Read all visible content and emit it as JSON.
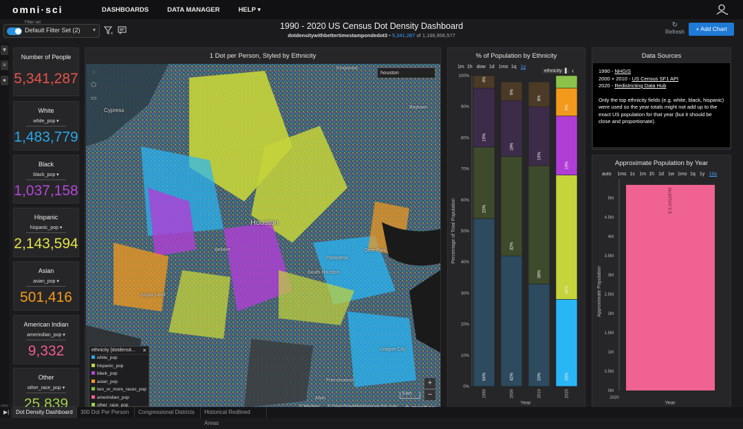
{
  "nav": {
    "logo": "omni·sci",
    "items": [
      "DASHBOARDS",
      "DATA MANAGER",
      "HELP"
    ]
  },
  "filter": {
    "label": "Filter set",
    "value": "Default Filter Set (2)"
  },
  "dashboard": {
    "title": "1990 - 2020 US Census Dot Density Dashboard",
    "table": "dotdensitywithbettertimestampondedot3",
    "count": "5,341,287",
    "total": "of 1,166,956,577",
    "refresh_label": "Refresh",
    "add_chart_label": "Add Chart"
  },
  "cards": [
    {
      "title": "Number of People",
      "field": "",
      "value": "5,341,287",
      "color": "#e8524b"
    },
    {
      "title": "White",
      "field": "white_pop",
      "value": "1,483,779",
      "color": "#2aa7e8"
    },
    {
      "title": "Black",
      "field": "black_pop",
      "value": "1,037,158",
      "color": "#b348d8"
    },
    {
      "title": "Hispanic",
      "field": "hispanic_pop",
      "value": "2,143,594",
      "color": "#e3e34a"
    },
    {
      "title": "Asian",
      "field": "asian_pop",
      "value": "501,416",
      "color": "#f39a1c"
    },
    {
      "title": "American Indian",
      "field": "amerindian_pop",
      "value": "9,332",
      "color": "#ef5b8f"
    },
    {
      "title": "Other",
      "field": "other_race_pop",
      "value": "25,839",
      "color": "#9fd14a"
    }
  ],
  "map": {
    "title": "1 Dot per Person, Styled by Ethnicity",
    "search_value": "houston",
    "labels": [
      "Cypress",
      "Kingwood",
      "Houston",
      "Bellaire",
      "Pasadena",
      "South Houston",
      "Deer Park",
      "Sugar Land",
      "Friendswood",
      "League City",
      "Alvin",
      "Baytown"
    ],
    "scale": "5 km",
    "attribution": [
      "© Mapbox",
      "© OpenStreetMap",
      "Improve this map"
    ],
    "mapbox": "mapbox",
    "legend_title": "ethnicity [dotdensit...",
    "legend": [
      {
        "label": "white_pop",
        "color": "#2aa7e8"
      },
      {
        "label": "hispanic_pop",
        "color": "#c5d43a"
      },
      {
        "label": "black_pop",
        "color": "#b348d8"
      },
      {
        "label": "asian_pop",
        "color": "#f39a1c"
      },
      {
        "label": "two_or_more_races_pop",
        "color": "#7fbf3f"
      },
      {
        "label": "amerindian_pop",
        "color": "#ef5b8f"
      },
      {
        "label": "other_race_pop",
        "color": "#9fd14a"
      }
    ]
  },
  "ethnicity_chart": {
    "title": "% of Population by Ethnicity",
    "time_buttons": [
      "1m",
      "1h",
      "dow",
      "1d",
      "1mo",
      "1q",
      "1y"
    ],
    "active_time": "1y",
    "group_label": "ethnicity"
  },
  "sources": {
    "title": "Data Sources",
    "lines": [
      {
        "prefix": "1990 - ",
        "link": "NHGIS"
      },
      {
        "prefix": "2000 + 2010 - ",
        "link": "US Census SF1 API"
      },
      {
        "prefix": "2020 - ",
        "link": "Redistricting Data Hub"
      }
    ],
    "note": "Only the top ethnicity fields (e.g. white, black, hispanic) were used so the year totals might not add up to the exact US population for that year (but it should be close and proportionate)."
  },
  "pop_chart": {
    "title": "Approximate Population by Year",
    "time_buttons": [
      "auto",
      "1ms",
      "1s",
      "1m",
      "1h",
      "1d",
      "1w",
      "1mo",
      "1q",
      "1y",
      "10y"
    ],
    "active_time": "10y"
  },
  "tabs": [
    "Dot Density Dashboard",
    "300 Dot Per Person",
    "Congressional Districts",
    "Historical Redlined Areas"
  ],
  "colors": {
    "accent": "#1f7ad6",
    "white": "#29b6f6",
    "black": "#b03ed6",
    "hispanic": "#c5d43a",
    "asian": "#f39a1c",
    "other": "#8bc34a"
  },
  "chart_data": [
    {
      "type": "bar",
      "stacked": true,
      "title": "% of Population by Ethnicity",
      "xlabel": "Year",
      "ylabel": "Percentage of Total Population",
      "categories": [
        "1990",
        "2000",
        "2010",
        "2020"
      ],
      "ylim": [
        0,
        100
      ],
      "yticks": [
        "0%",
        "10%",
        "20%",
        "30%",
        "40%",
        "50%",
        "60%",
        "70%",
        "80%",
        "90%",
        "100%"
      ],
      "series": [
        {
          "name": "white_pop",
          "color": "#2d4a5e",
          "values": [
            54,
            42,
            33,
            0
          ]
        },
        {
          "name": "hispanic_pop",
          "color": "#3e4a2c",
          "values": [
            23,
            32,
            38,
            0
          ]
        },
        {
          "name": "black_pop",
          "color": "#3d2b4a",
          "values": [
            19,
            18,
            19,
            0
          ]
        },
        {
          "name": "asian_pop",
          "color": "#4a3a26",
          "values": [
            4,
            6,
            8,
            0
          ]
        },
        {
          "name": "white_pop_2020",
          "color": "#29b6f6",
          "values": [
            0,
            0,
            0,
            28
          ]
        },
        {
          "name": "hispanic_pop_2020",
          "color": "#c5d43a",
          "values": [
            0,
            0,
            0,
            40
          ]
        },
        {
          "name": "black_pop_2020",
          "color": "#b03ed6",
          "values": [
            0,
            0,
            0,
            19
          ]
        },
        {
          "name": "asian_pop_2020",
          "color": "#f39a1c",
          "values": [
            0,
            0,
            0,
            9
          ]
        },
        {
          "name": "other_2020",
          "color": "#8bc34a",
          "values": [
            0,
            0,
            0,
            4
          ]
        }
      ],
      "bar_labels": [
        {
          "category": "1990",
          "labels": [
            "54%",
            "23%",
            "19%",
            "4%"
          ]
        },
        {
          "category": "2000",
          "labels": [
            "42%",
            "32%",
            "18%",
            "6%"
          ]
        },
        {
          "category": "2010",
          "labels": [
            "33%",
            "38%",
            "19%",
            "8%"
          ]
        },
        {
          "category": "2020",
          "labels": [
            "28%",
            "40%",
            "19%",
            "9%"
          ]
        }
      ]
    },
    {
      "type": "bar",
      "title": "Approximate Population by Year",
      "xlabel": "Year",
      "ylabel": "Approximate Population",
      "categories": [
        "2020"
      ],
      "values": [
        5341287
      ],
      "value_label": "$ 5.34128?M",
      "ylim": [
        0,
        5500000
      ],
      "yticks": [
        "0M",
        "0.5M",
        "1M",
        "1.5M",
        "2M",
        "2.5M",
        "3M",
        "3.5M",
        "4M",
        "4.5M",
        "5M"
      ],
      "color": "#f06292"
    }
  ]
}
